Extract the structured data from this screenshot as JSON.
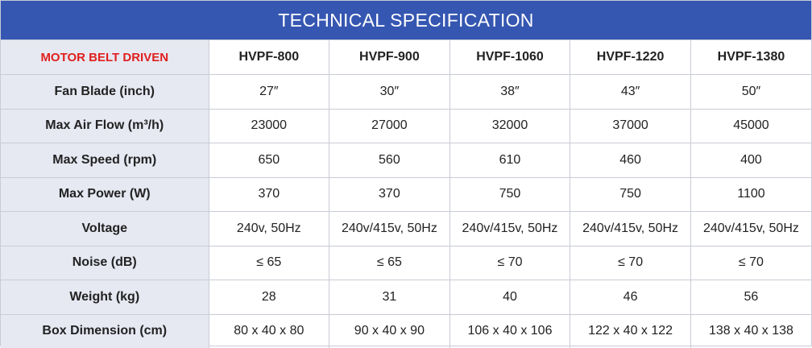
{
  "title": "TECHNICAL SPECIFICATION",
  "colors": {
    "title_bg": "#3557b2",
    "label_bg": "#e6e8f2",
    "accent_red": "#e0201e"
  },
  "header": {
    "label": "MOTOR BELT DRIVEN",
    "models": [
      "HVPF-800",
      "HVPF-900",
      "HVPF-1060",
      "HVPF-1220",
      "HVPF-1380"
    ]
  },
  "rows": [
    {
      "label": "Fan Blade (inch)",
      "values": [
        "27″",
        "30″",
        "38″",
        "43″",
        "50″"
      ]
    },
    {
      "label": "Max Air Flow (m³/h)",
      "values": [
        "23000",
        "27000",
        "32000",
        "37000",
        "45000"
      ]
    },
    {
      "label": "Max Speed (rpm)",
      "values": [
        "650",
        "560",
        "610",
        "460",
        "400"
      ]
    },
    {
      "label": "Max Power (W)",
      "values": [
        "370",
        "370",
        "750",
        "750",
        "1100"
      ]
    },
    {
      "label": "Voltage",
      "values": [
        "240v, 50Hz",
        "240v/415v, 50Hz",
        "240v/415v, 50Hz",
        "240v/415v, 50Hz",
        "240v/415v, 50Hz"
      ]
    },
    {
      "label": "Noise (dB)",
      "values": [
        "≤ 65",
        "≤ 65",
        "≤ 70",
        "≤ 70",
        "≤ 70"
      ]
    },
    {
      "label": "Weight (kg)",
      "values": [
        "28",
        "31",
        "40",
        "46",
        "56"
      ]
    },
    {
      "label": "Box Dimension (cm)",
      "values": [
        "80 x 40 x 80",
        "90 x 40 x 90",
        "106 x 40 x 106",
        "122 x 40 x 122",
        "138 x 40 x 138"
      ]
    }
  ]
}
